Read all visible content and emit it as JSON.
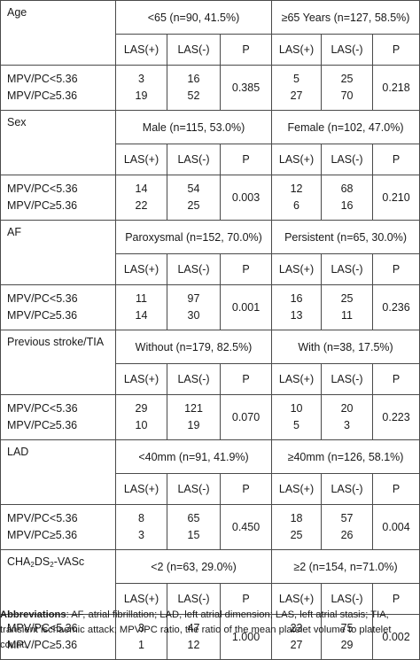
{
  "sections": [
    {
      "label": "Age",
      "group1": "<65 (n=90, 41.5%)",
      "group2": "≥65 Years (n=127, 58.5%)",
      "rows": [
        "MPV/PC<5.36",
        "MPV/PC≥5.36"
      ],
      "g1_las_pos": [
        "3",
        "19"
      ],
      "g1_las_neg": [
        "16",
        "52"
      ],
      "g1_p": "0.385",
      "g2_las_pos": [
        "5",
        "27"
      ],
      "g2_las_neg": [
        "25",
        "70"
      ],
      "g2_p": "0.218"
    },
    {
      "label": "Sex",
      "group1": "Male (n=115, 53.0%)",
      "group2": "Female (n=102, 47.0%)",
      "rows": [
        "MPV/PC<5.36",
        "MPV/PC≥5.36"
      ],
      "g1_las_pos": [
        "14",
        "22"
      ],
      "g1_las_neg": [
        "54",
        "25"
      ],
      "g1_p": "0.003",
      "g2_las_pos": [
        "12",
        "6"
      ],
      "g2_las_neg": [
        "68",
        "16"
      ],
      "g2_p": "0.210"
    },
    {
      "label": "AF",
      "group1": "Paroxysmal (n=152, 70.0%)",
      "group2": "Persistent (n=65, 30.0%)",
      "rows": [
        "MPV/PC<5.36",
        "MPV/PC≥5.36"
      ],
      "g1_las_pos": [
        "11",
        "14"
      ],
      "g1_las_neg": [
        "97",
        "30"
      ],
      "g1_p": "0.001",
      "g2_las_pos": [
        "16",
        "13"
      ],
      "g2_las_neg": [
        "25",
        "11"
      ],
      "g2_p": "0.236"
    },
    {
      "label": "Previous stroke/TIA",
      "group1": "Without (n=179, 82.5%)",
      "group2": "With (n=38, 17.5%)",
      "rows": [
        "MPV/PC<5.36",
        "MPV/PC≥5.36"
      ],
      "g1_las_pos": [
        "29",
        "10"
      ],
      "g1_las_neg": [
        "121",
        "19"
      ],
      "g1_p": "0.070",
      "g2_las_pos": [
        "10",
        "5"
      ],
      "g2_las_neg": [
        "20",
        "3"
      ],
      "g2_p": "0.223"
    },
    {
      "label": "LAD",
      "group1": "<40mm (n=91, 41.9%)",
      "group2": "≥40mm (n=126, 58.1%)",
      "rows": [
        "MPV/PC<5.36",
        "MPV/PC≥5.36"
      ],
      "g1_las_pos": [
        "8",
        "3"
      ],
      "g1_las_neg": [
        "65",
        "15"
      ],
      "g1_p": "0.450",
      "g2_las_pos": [
        "18",
        "25"
      ],
      "g2_las_neg": [
        "57",
        "26"
      ],
      "g2_p": "0.004"
    },
    {
      "label": "CHA2DS2-VASc",
      "label_parts": [
        "CHA",
        "2",
        "DS",
        "2",
        "-VASc"
      ],
      "group1": "<2 (n=63, 29.0%)",
      "group2": "≥2 (n=154, n=71.0%)",
      "rows": [
        "MPV/PC<5.36",
        "MPV/PC≥5.36"
      ],
      "g1_las_pos": [
        "3",
        "1"
      ],
      "g1_las_neg": [
        "47",
        "12"
      ],
      "g1_p": "1.000",
      "g2_las_pos": [
        "23",
        "27"
      ],
      "g2_las_neg": [
        "75",
        "29"
      ],
      "g2_p": "0.002"
    }
  ],
  "col_headers": {
    "las_pos": "LAS(+)",
    "las_neg": "LAS(-)",
    "p": "P"
  },
  "footnote": {
    "title": "Abbreviations",
    "text": ": AF, atrial fibrillation; LAD, left atrial dimension; LAS, left atrial stasis; TIA, transient ischaemic attack; MPV/PC ratio, the ratio of the mean platelet volume to platelet count."
  }
}
